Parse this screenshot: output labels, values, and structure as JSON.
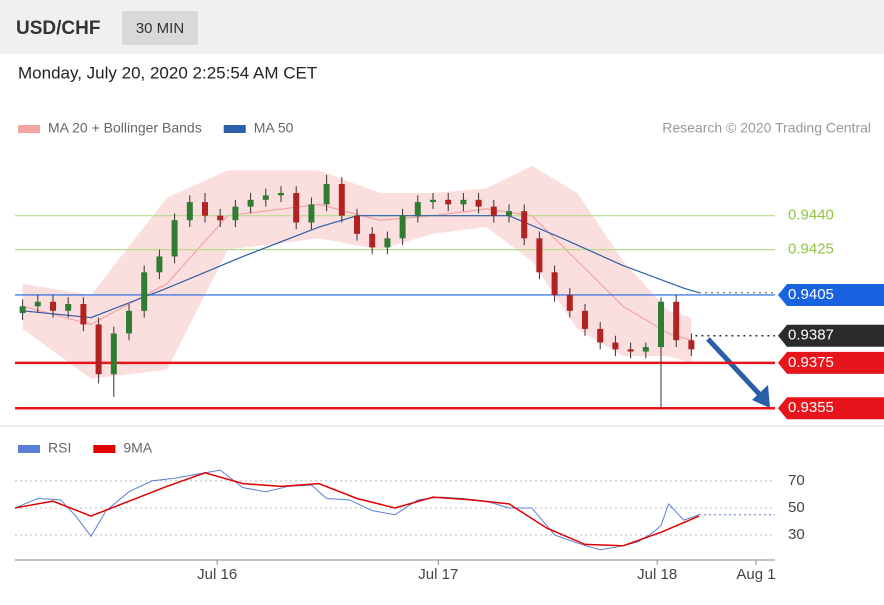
{
  "header": {
    "symbol": "USD/CHF",
    "timeframe": "30 MIN",
    "timestamp": "Monday, July 20, 2020 2:25:54 AM CET"
  },
  "chart_data": [
    {
      "type": "candlestick",
      "source": "Research © 2020 Trading Central",
      "xlim": [
        0,
        100
      ],
      "ylim": [
        0.9352,
        0.9469
      ],
      "candles": {
        "x": [
          1,
          3,
          5,
          7,
          9,
          11,
          13,
          15,
          17,
          19,
          21,
          23,
          25,
          27,
          29,
          31,
          33,
          35,
          37,
          39,
          41,
          43,
          45,
          47,
          49,
          51,
          53,
          55,
          57,
          59,
          61,
          63,
          65,
          67,
          69,
          71,
          73,
          75,
          77,
          79,
          81,
          83,
          85,
          87,
          89
        ],
        "open": [
          0.9397,
          0.94,
          0.9402,
          0.9398,
          0.9401,
          0.9392,
          0.937,
          0.9388,
          0.9398,
          0.9415,
          0.9422,
          0.9438,
          0.9446,
          0.944,
          0.9438,
          0.9444,
          0.9447,
          0.9449,
          0.945,
          0.9437,
          0.9445,
          0.9454,
          0.944,
          0.9432,
          0.9426,
          0.943,
          0.944,
          0.9446,
          0.9447,
          0.9445,
          0.9447,
          0.9444,
          0.944,
          0.9442,
          0.943,
          0.9415,
          0.9405,
          0.9398,
          0.939,
          0.9384,
          0.9381,
          0.938,
          0.9382,
          0.9402,
          0.9385
        ],
        "high": [
          0.9403,
          0.9405,
          0.9405,
          0.9404,
          0.9404,
          0.9395,
          0.9391,
          0.9401,
          0.9418,
          0.9425,
          0.9441,
          0.9449,
          0.945,
          0.9443,
          0.9447,
          0.945,
          0.9452,
          0.9453,
          0.9453,
          0.9448,
          0.9458,
          0.9457,
          0.9443,
          0.9435,
          0.9433,
          0.9443,
          0.9449,
          0.945,
          0.945,
          0.945,
          0.945,
          0.9447,
          0.9445,
          0.9445,
          0.9433,
          0.9418,
          0.9408,
          0.9401,
          0.9393,
          0.9387,
          0.9384,
          0.9384,
          0.9404,
          0.9405,
          0.9388
        ],
        "low": [
          0.9394,
          0.9397,
          0.9395,
          0.9395,
          0.9389,
          0.9366,
          0.936,
          0.9385,
          0.9395,
          0.9412,
          0.9419,
          0.9435,
          0.9437,
          0.9435,
          0.9435,
          0.9441,
          0.9444,
          0.9446,
          0.9434,
          0.9434,
          0.9442,
          0.9437,
          0.9429,
          0.9423,
          0.9423,
          0.9427,
          0.9437,
          0.9443,
          0.9442,
          0.9442,
          0.9441,
          0.9437,
          0.9437,
          0.9427,
          0.9412,
          0.9402,
          0.9395,
          0.9387,
          0.9381,
          0.9378,
          0.9377,
          0.9377,
          0.9355,
          0.9382,
          0.9378
        ],
        "close": [
          0.94,
          0.9402,
          0.9398,
          0.9401,
          0.9392,
          0.937,
          0.9388,
          0.9398,
          0.9415,
          0.9422,
          0.9438,
          0.9446,
          0.944,
          0.9438,
          0.9444,
          0.9447,
          0.9449,
          0.945,
          0.9437,
          0.9445,
          0.9454,
          0.944,
          0.9432,
          0.9426,
          0.943,
          0.944,
          0.9446,
          0.9447,
          0.9445,
          0.9447,
          0.9444,
          0.944,
          0.9442,
          0.943,
          0.9415,
          0.9405,
          0.9398,
          0.939,
          0.9384,
          0.9381,
          0.938,
          0.9382,
          0.9402,
          0.9385,
          0.9381
        ],
        "up_color": "#2f7d32",
        "down_color": "#b22222"
      },
      "bands": {
        "name": "MA 20 + Bollinger Bands",
        "color": "#f4a3a3",
        "x": [
          1,
          10,
          20,
          28,
          40,
          48,
          55,
          62,
          68,
          74,
          80,
          86,
          89
        ],
        "upper": [
          0.941,
          0.9405,
          0.9448,
          0.946,
          0.946,
          0.945,
          0.945,
          0.9452,
          0.9462,
          0.945,
          0.942,
          0.9398,
          0.9395
        ],
        "values": [
          0.94,
          0.9392,
          0.941,
          0.944,
          0.9445,
          0.9438,
          0.944,
          0.9443,
          0.944,
          0.942,
          0.94,
          0.9388,
          0.9385
        ],
        "lower": [
          0.939,
          0.9368,
          0.9372,
          0.9425,
          0.943,
          0.9425,
          0.9432,
          0.9435,
          0.942,
          0.939,
          0.9378,
          0.9378,
          0.9375
        ]
      },
      "series": [
        {
          "name": "MA 50",
          "color": "#2e5fa8",
          "x": [
            1,
            10,
            20,
            30,
            40,
            45,
            55,
            65,
            72,
            80,
            88,
            90
          ],
          "values": [
            0.9398,
            0.9395,
            0.9408,
            0.9422,
            0.9435,
            0.944,
            0.944,
            0.944,
            0.943,
            0.9418,
            0.9408,
            0.9406
          ]
        }
      ],
      "levels": [
        {
          "value": 0.944,
          "label": "0.9440",
          "color": "#8dc63f",
          "style": "text"
        },
        {
          "value": 0.9425,
          "label": "0.9425",
          "color": "#8dc63f",
          "style": "text"
        },
        {
          "value": 0.9405,
          "label": "0.9405",
          "color": "#1a63e0",
          "style": "box"
        },
        {
          "value": 0.9387,
          "label": "0.9387",
          "color": "#2b2b2b",
          "style": "current"
        },
        {
          "value": 0.9375,
          "label": "0.9375",
          "color": "#e8141b",
          "style": "box"
        },
        {
          "value": 0.9355,
          "label": "0.9355",
          "color": "#e8141b",
          "style": "box"
        }
      ]
    },
    {
      "type": "line",
      "xlim": [
        0,
        100
      ],
      "ylim": [
        10,
        84
      ],
      "yticks": [
        30,
        50,
        70
      ],
      "xticks": [
        {
          "value": 26.6,
          "label": "Jul 16"
        },
        {
          "value": 55.7,
          "label": "Jul 17"
        },
        {
          "value": 84.5,
          "label": "Jul 18"
        },
        {
          "value": 97.5,
          "label": "Aug 1"
        }
      ],
      "series": [
        {
          "name": "RSI",
          "color": "#5b7fd6",
          "x": [
            0,
            3,
            6,
            8,
            10,
            12,
            15,
            18,
            21,
            24,
            27,
            30,
            33,
            36,
            39,
            41,
            44,
            47,
            50,
            53,
            56,
            59,
            62,
            65,
            68,
            71,
            74,
            77,
            80,
            82,
            84,
            85,
            86,
            88,
            90
          ],
          "values": [
            50,
            57,
            56,
            44,
            29,
            48,
            62,
            70,
            72,
            75,
            78,
            65,
            62,
            66,
            67,
            57,
            56,
            48,
            45,
            56,
            58,
            57,
            55,
            50,
            50,
            30,
            24,
            19,
            22,
            25,
            32,
            37,
            53,
            41,
            45
          ]
        },
        {
          "name": "9MA",
          "color": "#e00000",
          "x": [
            0,
            5,
            10,
            15,
            20,
            25,
            30,
            35,
            40,
            45,
            50,
            55,
            60,
            65,
            70,
            75,
            80,
            85,
            90
          ],
          "values": [
            50,
            55,
            44,
            55,
            66,
            76,
            68,
            66,
            68,
            57,
            50,
            58,
            56,
            53,
            35,
            23,
            22,
            32,
            44
          ]
        }
      ]
    }
  ]
}
